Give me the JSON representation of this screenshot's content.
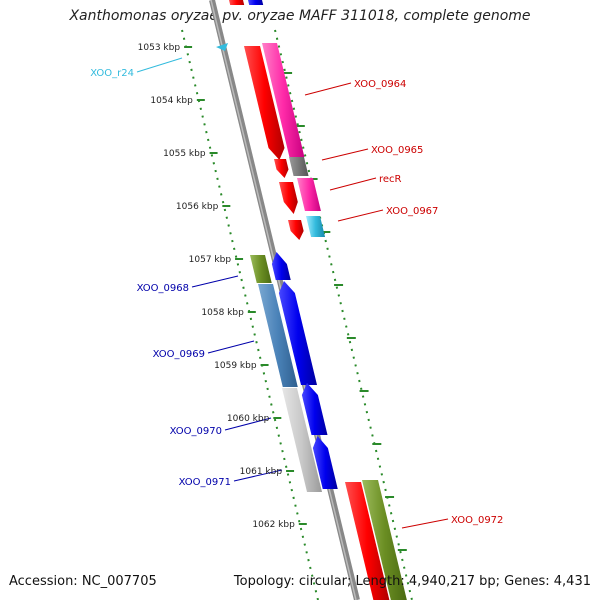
{
  "title": "Xanthomonas oryzae pv. oryzae MAFF 311018, complete genome",
  "accession": "Accession: NC_007705",
  "summary": "Topology: circular; Length: 4,940,217 bp; Genes: 4,431",
  "colors": {
    "forward_label": "#cc0000",
    "reverse_label": "#0000aa",
    "rna_label": "#33bbdd",
    "ruler": "#2a8a2a",
    "backbone": "#888888"
  },
  "ruler_ticks": [
    "1053 kbp",
    "1054 kbp",
    "1055 kbp",
    "1056 kbp",
    "1057 kbp",
    "1058 kbp",
    "1059 kbp",
    "1060 kbp",
    "1061 kbp",
    "1062 kbp"
  ],
  "gene_labels": [
    {
      "name": "XOO_r24",
      "color": "#33bbdd"
    },
    {
      "name": "XOO_0964",
      "color": "#cc0000"
    },
    {
      "name": "XOO_0965",
      "color": "#cc0000"
    },
    {
      "name": "recR",
      "color": "#cc0000"
    },
    {
      "name": "XOO_0967",
      "color": "#cc0000"
    },
    {
      "name": "XOO_0968",
      "color": "#0000aa"
    },
    {
      "name": "XOO_0969",
      "color": "#0000aa"
    },
    {
      "name": "XOO_0970",
      "color": "#0000aa"
    },
    {
      "name": "XOO_0971",
      "color": "#0000aa"
    },
    {
      "name": "XOO_0972",
      "color": "#cc0000"
    }
  ]
}
